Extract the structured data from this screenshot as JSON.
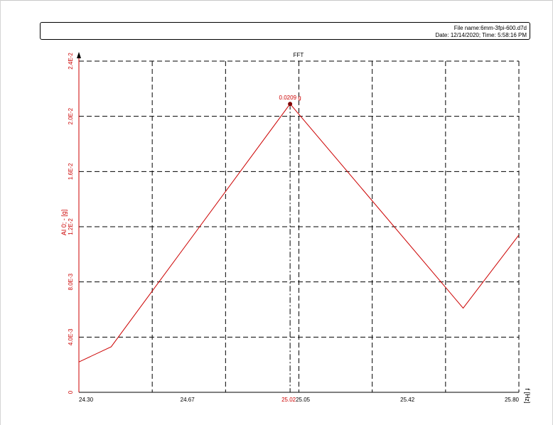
{
  "header": {
    "file_name": "File name:6mm-3fpi-600.d7d",
    "date_time": "Date: 12/14/2020; Time: 5:58:16 PM"
  },
  "colors": {
    "series": "#cc0000",
    "grid": "#000000",
    "axis_y": "#cc0000"
  },
  "chart_data": {
    "type": "line",
    "title": "FFT",
    "ylabel": "AI 0; - [g]",
    "xlabel": "f [Hz]",
    "xlim": [
      24.3,
      25.8
    ],
    "ylim": [
      0,
      0.024
    ],
    "grid": true,
    "x_ticks": [
      "24.30",
      "24.67",
      "25.02",
      "25.05",
      "25.42",
      "25.80"
    ],
    "y_ticks": [
      "0",
      "4.0E-3",
      "8.0E-3",
      "1.2E-2",
      "1.6E-2",
      "2.0E-2",
      "2.4E-2"
    ],
    "y_tick_values": [
      0,
      0.004,
      0.008,
      0.012,
      0.016,
      0.02,
      0.024
    ],
    "series": [
      {
        "x": [
          24.3,
          24.41,
          25.02,
          25.61,
          25.8
        ],
        "values": [
          0.0022,
          0.0033,
          0.0209,
          0.0061,
          0.0114
        ]
      }
    ],
    "peak_marker": {
      "x": 25.02,
      "y": 0.0209,
      "label": "0.0209 g"
    }
  }
}
